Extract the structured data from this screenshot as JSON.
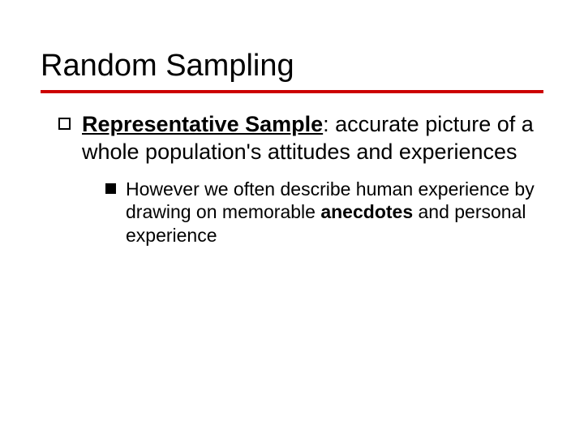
{
  "slide": {
    "title": "Random Sampling",
    "rule_color": "#cc0000",
    "background_color": "#ffffff",
    "text_color": "#000000",
    "title_fontsize": 38,
    "level1_fontsize": 27,
    "level2_fontsize": 23,
    "bullets": {
      "level1": {
        "marker": "hollow-square",
        "term": "Representative Sample",
        "text_after_term": ": accurate picture of a whole population's attitudes and experiences"
      },
      "level2": {
        "marker": "solid-square",
        "text_before_bold": "However we often describe human experience by drawing on memorable ",
        "bold_word": "anecdotes",
        "text_after_bold": " and personal experience"
      }
    }
  }
}
